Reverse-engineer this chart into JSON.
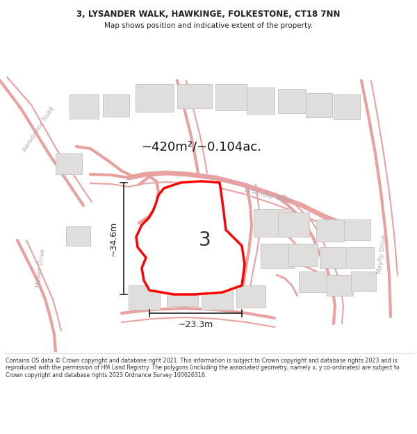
{
  "title_line1": "3, LYSANDER WALK, HAWKINGE, FOLKESTONE, CT18 7NN",
  "title_line2": "Map shows position and indicative extent of the property.",
  "area_label": "~420m²/~0.104ac.",
  "label_number": "3",
  "dim_height": "~34.6m",
  "dim_width": "~23.3m",
  "road_label1": "Lysander Walk",
  "road_label2": "Haven Drive",
  "road_label3": "Aerodrome Road",
  "road_label4": "Mayfly Drive",
  "footer_text": "Contains OS data © Crown copyright and database right 2021. This information is subject to Crown copyright and database rights 2023 and is reproduced with the permission of HM Land Registry. The polygons (including the associated geometry, namely x, y co-ordinates) are subject to Crown copyright and database rights 2023 Ordnance Survey 100026316.",
  "map_bg": "#f7f6f4",
  "road_line_color": "#e8a0a0",
  "road_fill_color": "#f5e0e0",
  "building_color": "#e0dedd",
  "building_edge": "#c8c5c2",
  "highlight_color": "#ff0000",
  "dim_color": "#222222",
  "road_text_color": "#b0aaaa",
  "title_color": "#222222",
  "footer_color": "#333333"
}
